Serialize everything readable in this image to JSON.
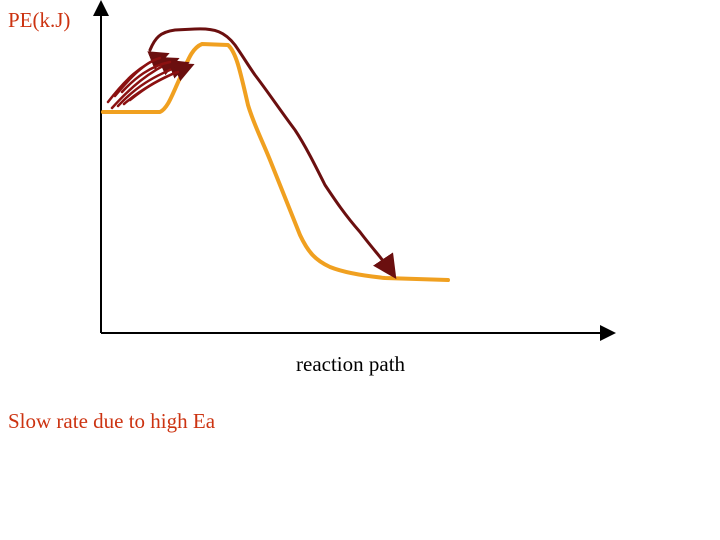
{
  "axes": {
    "y_label": "PE(k.J)",
    "x_label": "reaction path"
  },
  "caption": "Slow rate due to high Ea"
}
